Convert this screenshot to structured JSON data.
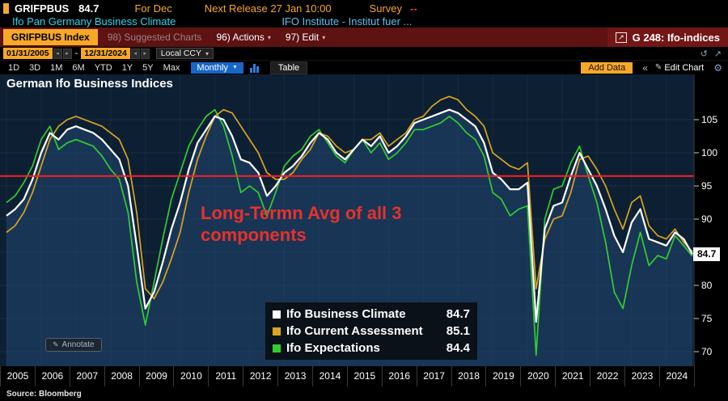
{
  "top_bar": {
    "ticker": "GRIFPBUS",
    "value": "84.7",
    "period": "For Dec",
    "next_release": "Next Release 27 Jan 10:00",
    "survey_label": "Survey",
    "survey_value": "--",
    "security_name": "Ifo Pan Germany Business Climate",
    "source_name": "IFO Institute - Institut fuer ..."
  },
  "menu_bar": {
    "security_box": "GRIFPBUS Index",
    "suggested_charts": "98) Suggested Charts",
    "actions": "96) Actions",
    "edit": "97) Edit",
    "chart_id": "G 248: Ifo-indices"
  },
  "date_toolbar": {
    "start_date": "01/31/2005",
    "separator": "-",
    "end_date": "12/31/2024",
    "currency": "Local CCY"
  },
  "period_toolbar": {
    "periods": [
      "1D",
      "3D",
      "1M",
      "6M",
      "YTD",
      "1Y",
      "5Y",
      "Max"
    ],
    "frequency": "Monthly",
    "table_label": "Table",
    "add_data": "Add Data",
    "edit_chart": "Edit Chart"
  },
  "chart": {
    "title": "German Ifo Business Indices",
    "annotation_line1": "Long-Termn Avg of all 3",
    "annotation_line2": "components",
    "annotate_label": "Annotate",
    "last_value": "84.7",
    "legend": [
      {
        "label": "Ifo Business Climate",
        "value": "84.7",
        "color": "#ffffff"
      },
      {
        "label": "Ifo Current Assessment",
        "value": "85.1",
        "color": "#D9A521"
      },
      {
        "label": "Ifo Expectations",
        "value": "84.4",
        "color": "#33CC33"
      }
    ]
  },
  "footer": {
    "source": "Source: Bloomberg"
  },
  "icons": {
    "caret_down": "▾",
    "caret_down_small": "▼",
    "step_left": "◂",
    "step_right": "▸",
    "undo": "↺",
    "expand": "↗",
    "export": "↗",
    "collapse": "«",
    "pencil": "✎",
    "gear": "⚙",
    "annotate": "✎"
  },
  "colors": {
    "amber": "#F7A829",
    "menu_bar_bg": "#5E1212",
    "plot_bg": "#0D1F33",
    "area_fill": "rgba(38,76,120,0.50)",
    "grid_v": "rgba(255,255,255,0.05)",
    "grid_h": "rgba(255,255,255,0.06)",
    "blue_button": "#1766C8",
    "red_annotation": "#E8312C"
  },
  "chart_data": {
    "type": "line",
    "title": "German Ifo Business Indices",
    "frequency": "quarterly",
    "x_start": 2005,
    "x_end": 2025,
    "x_labels": [
      "2005",
      "2006",
      "2007",
      "2008",
      "2009",
      "2010",
      "2011",
      "2012",
      "2013",
      "2014",
      "2015",
      "2016",
      "2017",
      "2018",
      "2019",
      "2020",
      "2021",
      "2022",
      "2023",
      "2024"
    ],
    "y_ticks": [
      105,
      100,
      95,
      90,
      85,
      80,
      75,
      70
    ],
    "ylim": [
      68.5,
      108.5
    ],
    "reference_line": {
      "value": 96.5,
      "color": "#FF1E1E",
      "label": "Long-Termn Avg of all 3 components"
    },
    "series": [
      {
        "name": "Ifo Business Climate",
        "color": "#FFFFFF",
        "last_value": 84.7,
        "values": [
          90.5,
          91.5,
          93,
          96,
          100,
          103,
          102,
          103.5,
          104,
          103.5,
          103,
          102,
          100.5,
          99,
          95,
          86,
          76.5,
          79,
          83.5,
          88.5,
          92.5,
          97.5,
          101.5,
          103.5,
          105.5,
          105,
          102.5,
          99,
          98.5,
          97,
          93.5,
          95,
          97,
          98,
          99.5,
          101.5,
          103,
          102,
          100,
          99,
          100.5,
          102,
          101,
          102.5,
          100,
          101,
          102.5,
          104.5,
          105,
          105.5,
          106,
          106.5,
          106,
          105,
          104,
          101.5,
          97,
          96,
          94.5,
          94.5,
          95.5,
          74.5,
          88.5,
          92,
          92.5,
          96.5,
          100,
          97.5,
          95,
          91.5,
          87.5,
          85,
          89.5,
          91.5,
          87,
          86.5,
          86,
          88,
          87,
          84.7
        ]
      },
      {
        "name": "Ifo Current Assessment",
        "color": "#D9A521",
        "last_value": 85.1,
        "values": [
          88,
          89,
          91,
          94,
          98,
          102,
          104,
          105,
          105.5,
          105,
          104.5,
          104,
          103,
          102,
          99,
          91,
          79.5,
          78,
          80.5,
          84,
          88,
          94,
          99,
          102.5,
          105.5,
          106.5,
          106,
          104,
          102,
          100,
          97,
          96,
          96,
          97,
          99,
          100.5,
          103,
          102.5,
          101,
          100,
          100.5,
          102,
          102,
          103,
          101,
          102,
          103,
          105,
          105.5,
          107,
          108,
          108.5,
          108,
          106.5,
          105.5,
          104,
          100,
          99,
          98,
          97.5,
          98.5,
          79.5,
          87,
          90,
          90.5,
          94,
          99,
          99.5,
          97.5,
          95,
          91.5,
          88.5,
          92.5,
          93.5,
          89,
          87.5,
          87,
          88.5,
          86.5,
          85.1
        ]
      },
      {
        "name": "Ifo Expectations",
        "color": "#33CC33",
        "last_value": 84.4,
        "values": [
          92.5,
          93.5,
          95.5,
          98,
          102,
          104,
          100.5,
          101.5,
          102,
          101.5,
          101,
          99.5,
          97.5,
          96,
          91,
          80.5,
          74,
          80.5,
          87,
          93,
          97,
          101,
          103.5,
          105.5,
          106.5,
          104,
          99.5,
          94,
          95,
          94,
          90.5,
          94,
          98,
          99.5,
          100.5,
          102.5,
          103.5,
          101.5,
          99.5,
          98.5,
          100.5,
          102,
          100,
          101.5,
          99,
          100,
          101.5,
          103.5,
          103.5,
          104,
          104.5,
          105.5,
          104.5,
          103,
          102,
          99.5,
          94,
          93,
          90.5,
          91.5,
          92,
          69.5,
          90,
          94.5,
          95,
          98.5,
          101,
          96.5,
          92.5,
          86.5,
          79,
          76.5,
          83,
          88,
          83,
          84.5,
          84,
          87.5,
          86,
          84.4
        ]
      }
    ]
  }
}
